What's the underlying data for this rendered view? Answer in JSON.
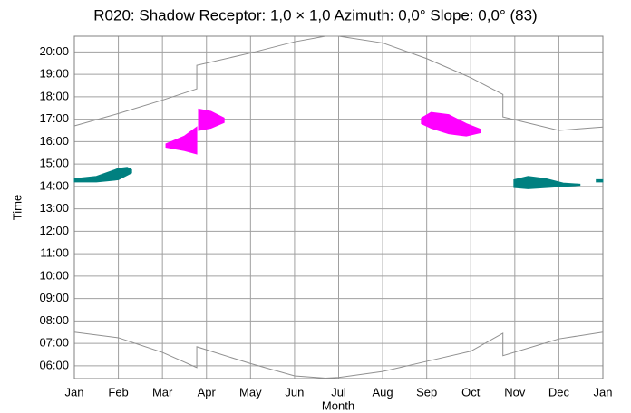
{
  "chart_data": {
    "type": "line",
    "title": "R020: Shadow Receptor: 1,0 × 1,0  Azimuth: 0,0°  Slope: 0,0° (83)",
    "x_label": "Month",
    "y_label": "Time",
    "xlim": [
      0,
      12
    ],
    "xticks": [
      {
        "value": 0,
        "label": "Jan"
      },
      {
        "value": 1,
        "label": "Feb"
      },
      {
        "value": 2,
        "label": "Mar"
      },
      {
        "value": 3,
        "label": "Apr"
      },
      {
        "value": 4,
        "label": "May"
      },
      {
        "value": 5,
        "label": "Jun"
      },
      {
        "value": 6,
        "label": "Jul"
      },
      {
        "value": 7,
        "label": "Aug"
      },
      {
        "value": 8,
        "label": "Sep"
      },
      {
        "value": 9,
        "label": "Oct"
      },
      {
        "value": 10,
        "label": "Nov"
      },
      {
        "value": 11,
        "label": "Dec"
      },
      {
        "value": 12,
        "label": "Jan"
      }
    ],
    "ylim": [
      5.43,
      20.7
    ],
    "yticks": [
      {
        "value": 6,
        "label": "06:00"
      },
      {
        "value": 7,
        "label": "07:00"
      },
      {
        "value": 8,
        "label": "08:00"
      },
      {
        "value": 9,
        "label": "09:00"
      },
      {
        "value": 10,
        "label": "10:00"
      },
      {
        "value": 11,
        "label": "11:00"
      },
      {
        "value": 12,
        "label": "12:00"
      },
      {
        "value": 13,
        "label": "13:00"
      },
      {
        "value": 14,
        "label": "14:00"
      },
      {
        "value": 15,
        "label": "15:00"
      },
      {
        "value": 16,
        "label": "16:00"
      },
      {
        "value": 17,
        "label": "17:00"
      },
      {
        "value": 18,
        "label": "18:00"
      },
      {
        "value": 19,
        "label": "19:00"
      },
      {
        "value": 20,
        "label": "20:00"
      }
    ],
    "grid": true,
    "x": [
      0,
      1,
      2,
      2.78,
      2.78,
      4,
      5,
      5.7,
      6,
      7,
      8,
      9,
      9.73,
      9.73,
      11,
      12
    ],
    "series": [
      {
        "color": "#909090",
        "values": [
          16.7,
          17.25,
          17.85,
          18.35,
          19.4,
          19.95,
          20.45,
          20.7,
          20.7,
          20.4,
          19.7,
          18.85,
          18.1,
          17.1,
          16.5,
          16.65
        ]
      },
      {
        "color": "#909090",
        "values": [
          7.5,
          7.25,
          6.6,
          5.92,
          6.85,
          6.1,
          5.55,
          5.45,
          5.48,
          5.75,
          6.2,
          6.65,
          7.45,
          6.45,
          7.2,
          7.5
        ]
      }
    ],
    "shadows": [
      {
        "color": "#008080",
        "x": [
          0,
          0.5,
          1.0,
          1.2,
          1.3
        ],
        "low": [
          14.2,
          14.2,
          14.3,
          14.5,
          14.6
        ],
        "high": [
          14.35,
          14.45,
          14.8,
          14.85,
          14.75
        ]
      },
      {
        "color": "#ff00ff",
        "x": [
          2.08,
          2.5,
          2.78
        ],
        "low": [
          15.75,
          15.6,
          15.45
        ],
        "high": [
          15.9,
          16.25,
          16.65
        ]
      },
      {
        "color": "#ff00ff",
        "x": [
          2.82,
          3.1,
          3.4
        ],
        "low": [
          16.5,
          16.6,
          16.85
        ],
        "high": [
          17.45,
          17.35,
          17.05
        ]
      },
      {
        "color": "#ff00ff",
        "x": [
          7.88,
          8.1,
          8.5,
          8.9,
          9.22
        ],
        "low": [
          16.8,
          16.6,
          16.35,
          16.25,
          16.4
        ],
        "high": [
          17.05,
          17.3,
          17.2,
          16.8,
          16.55
        ]
      },
      {
        "color": "#008080",
        "x": [
          9.98,
          10.3,
          10.7,
          11.1,
          11.48
        ],
        "low": [
          13.95,
          13.9,
          13.95,
          14.0,
          14.05
        ],
        "high": [
          14.3,
          14.45,
          14.35,
          14.15,
          14.1
        ]
      },
      {
        "color": "#008080",
        "x": [
          11.85,
          12
        ],
        "low": [
          14.2,
          14.2
        ],
        "high": [
          14.3,
          14.3
        ]
      }
    ]
  }
}
